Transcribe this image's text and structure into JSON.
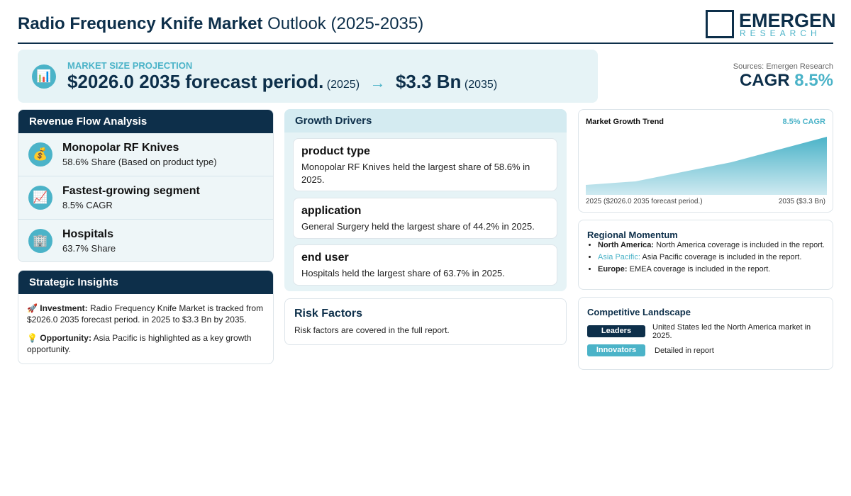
{
  "header": {
    "title_bold": "Radio Frequency Knife Market",
    "title_rest": "Outlook (2025-2035)",
    "logo_main": "EMERGEN",
    "logo_sub": "RESEARCH"
  },
  "projection": {
    "icon": "📊",
    "label": "MARKET SIZE PROJECTION",
    "start_value": "$2026.0 2035 forecast period.",
    "start_year": "(2025)",
    "arrow": "→",
    "end_value": "$3.3 Bn",
    "end_year": "(2035)"
  },
  "sources": "Sources: Emergen Research",
  "cagr": {
    "label": "CAGR",
    "value": "8.5%"
  },
  "revenue_flow": {
    "title": "Revenue Flow Analysis",
    "items": [
      {
        "icon": "💰",
        "title": "Monopolar RF Knives",
        "text": "58.6% Share (Based on product type)"
      },
      {
        "icon": "📈",
        "title": "Fastest-growing segment",
        "text": "8.5% CAGR"
      },
      {
        "icon": "🏢",
        "title": "Hospitals",
        "text": "63.7% Share"
      }
    ]
  },
  "strategic_insights": {
    "title": "Strategic Insights",
    "items": [
      {
        "icon": "🚀",
        "label": "Investment:",
        "text": "Radio Frequency Knife Market is tracked from $2026.0 2035 forecast period. in 2025 to $3.3 Bn by 2035."
      },
      {
        "icon": "💡",
        "label": "Opportunity:",
        "text": "Asia Pacific is highlighted as a key growth opportunity."
      }
    ]
  },
  "growth_drivers": {
    "title": "Growth Drivers",
    "items": [
      {
        "title": "product type",
        "text": "Monopolar RF Knives held the largest share of 58.6% in 2025."
      },
      {
        "title": "application",
        "text": "General Surgery held the largest share of 44.2% in 2025."
      },
      {
        "title": "end user",
        "text": "Hospitals held the largest share of 63.7% in 2025."
      }
    ]
  },
  "risk_factors": {
    "title": "Risk Factors",
    "text": "Risk factors are covered in the full report."
  },
  "trend": {
    "title": "Market Growth Trend",
    "badge": "8.5% CAGR",
    "start_label": "2025 ($2026.0 2035 forecast period.)",
    "end_label": "2035 ($3.3 Bn)"
  },
  "regional": {
    "title": "Regional Momentum",
    "items": [
      {
        "region": "North America:",
        "text": "North America coverage is included in the report."
      },
      {
        "region": "Asia Pacific:",
        "text": "Asia Pacific coverage is included in the report."
      },
      {
        "region": "Europe:",
        "text": "EMEA coverage is included in the report."
      }
    ]
  },
  "competitive": {
    "title": "Competitive Landscape",
    "items": [
      {
        "tag": "Leaders",
        "text": "United States led the North America market in 2025."
      },
      {
        "tag": "Innovators",
        "text": "Detailed in report"
      }
    ]
  }
}
